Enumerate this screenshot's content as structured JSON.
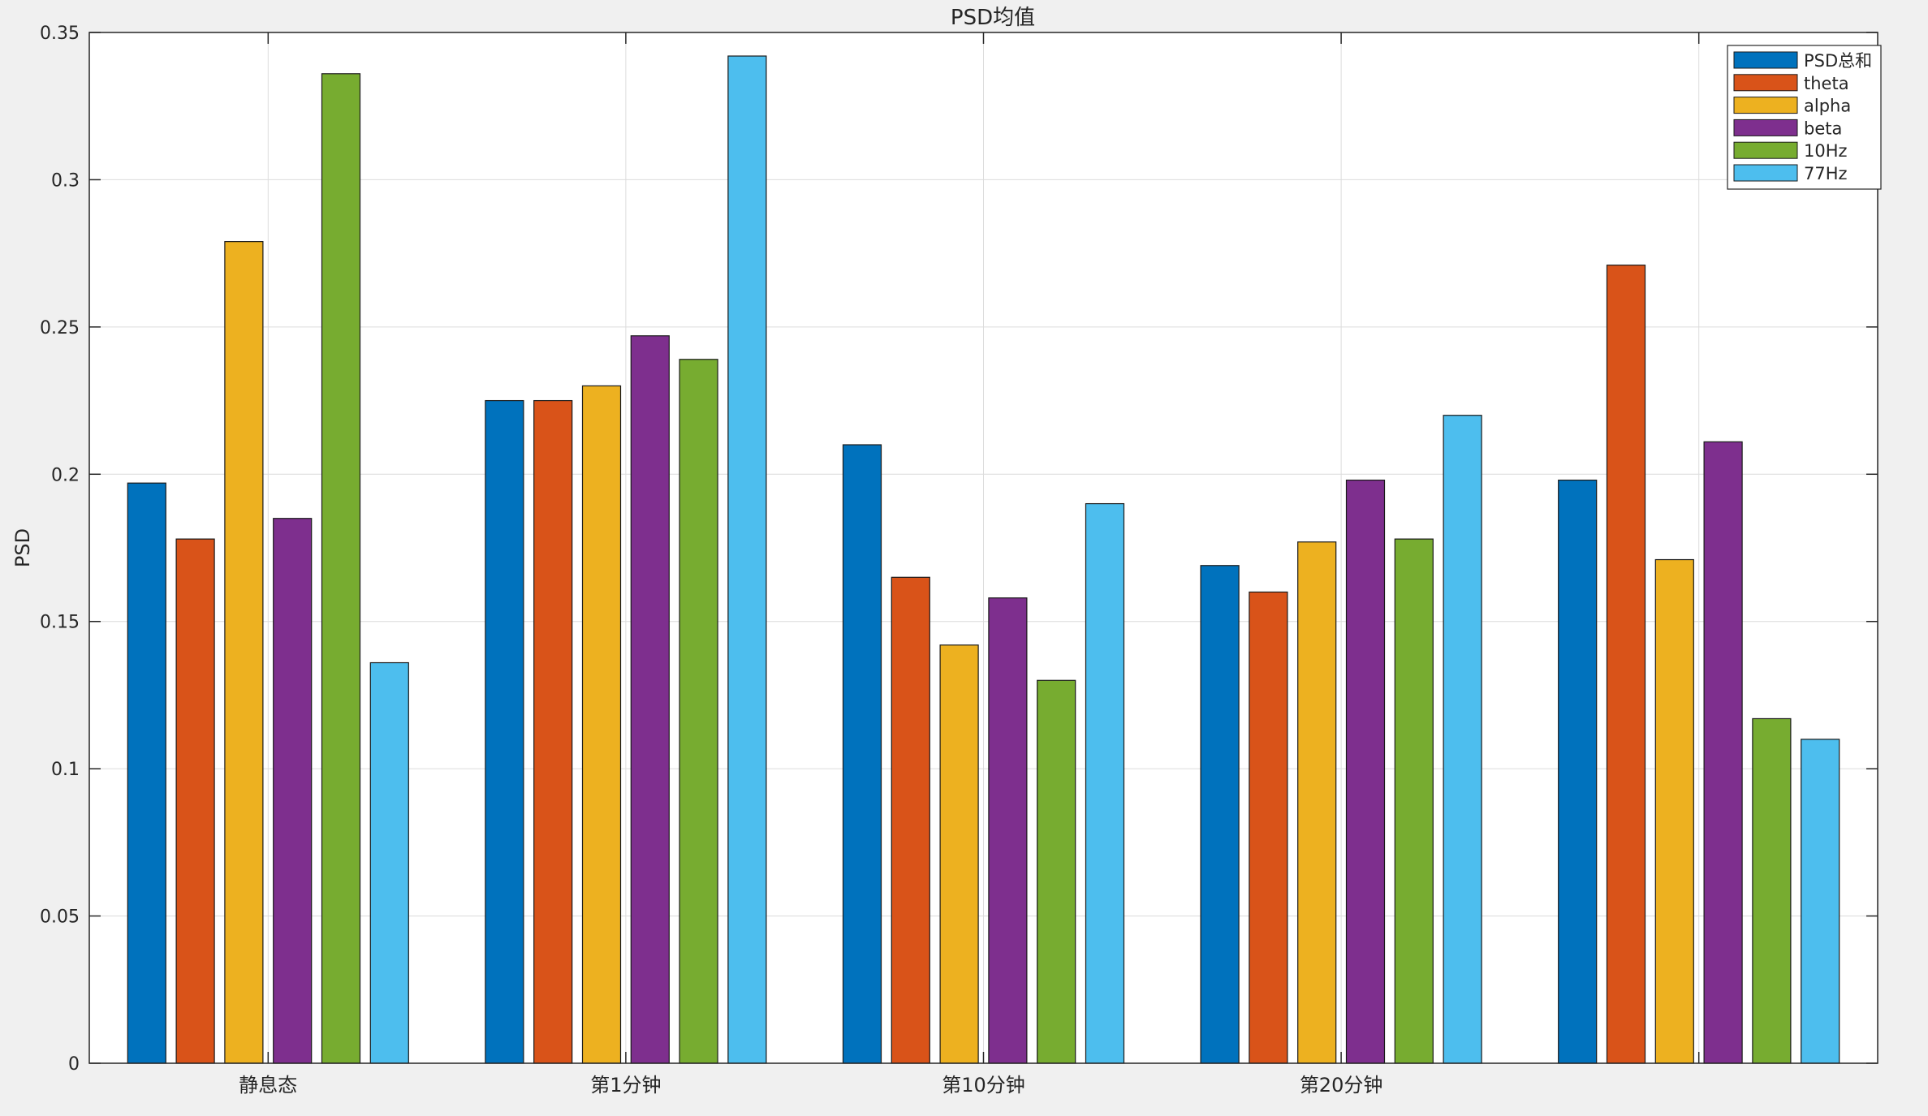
{
  "chart_data": {
    "type": "bar",
    "title": "PSD均值",
    "xlabel": "",
    "ylabel": "PSD",
    "ylim": [
      0,
      0.35
    ],
    "yticks": [
      "0",
      "0.05",
      "0.1",
      "0.15",
      "0.2",
      "0.25",
      "0.3",
      "0.35"
    ],
    "grid": true,
    "legend_position": "top-right",
    "categories": [
      "静息态",
      "第1分钟",
      "第10分钟",
      "第20分钟",
      ""
    ],
    "series": [
      {
        "name": "PSD总和",
        "color": "#0072bd",
        "values": [
          0.197,
          0.225,
          0.21,
          0.169,
          0.198
        ]
      },
      {
        "name": "theta",
        "color": "#d95319",
        "values": [
          0.178,
          0.225,
          0.165,
          0.16,
          0.271
        ]
      },
      {
        "name": "alpha",
        "color": "#edb120",
        "values": [
          0.279,
          0.23,
          0.142,
          0.177,
          0.171
        ]
      },
      {
        "name": "beta",
        "color": "#7e2f8e",
        "values": [
          0.185,
          0.247,
          0.158,
          0.198,
          0.211
        ]
      },
      {
        "name": "10Hz",
        "color": "#77ac30",
        "values": [
          0.336,
          0.239,
          0.13,
          0.178,
          0.117
        ]
      },
      {
        "name": "77Hz",
        "color": "#4dbeee",
        "values": [
          0.136,
          0.342,
          0.19,
          0.22,
          0.11
        ]
      }
    ]
  }
}
